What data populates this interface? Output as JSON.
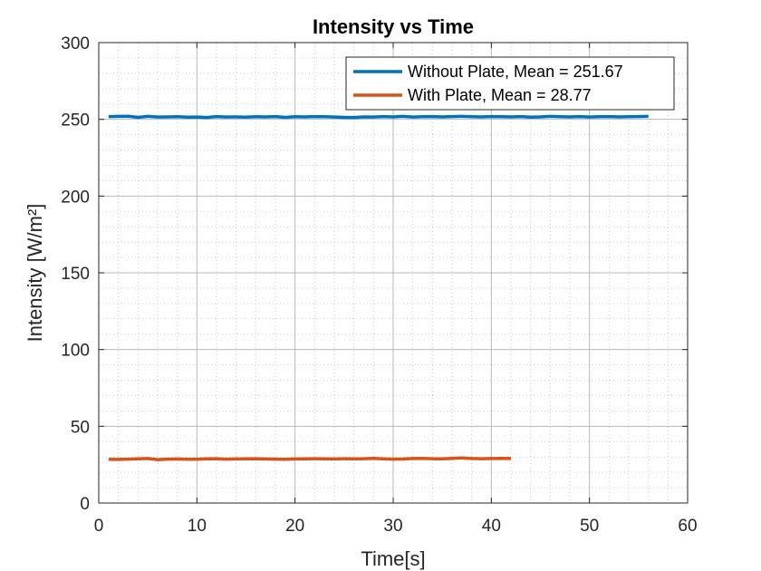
{
  "chart_data": {
    "type": "line",
    "title": "Intensity vs Time",
    "xlabel": "Time[s]",
    "ylabel": "Intensity [W/m²]",
    "xlim": [
      0,
      60
    ],
    "ylim": [
      0,
      300
    ],
    "xticks": [
      0,
      10,
      20,
      30,
      40,
      50,
      60
    ],
    "yticks": [
      0,
      50,
      100,
      150,
      200,
      250,
      300
    ],
    "grid": true,
    "minor_grid": true,
    "legend_position": "top-right",
    "series": [
      {
        "name": "Without Plate, Mean = 251.67",
        "color": "#0072BD",
        "x": [
          1,
          2,
          3,
          4,
          5,
          6,
          7,
          8,
          9,
          10,
          11,
          12,
          13,
          14,
          15,
          16,
          17,
          18,
          19,
          20,
          21,
          22,
          23,
          24,
          25,
          26,
          27,
          28,
          29,
          30,
          31,
          32,
          33,
          34,
          35,
          36,
          37,
          38,
          39,
          40,
          41,
          42,
          43,
          44,
          45,
          46,
          47,
          48,
          49,
          50,
          51,
          52,
          53,
          54,
          55,
          56
        ],
        "values": [
          251.8,
          251.9,
          252.0,
          251.3,
          251.9,
          251.5,
          251.6,
          251.7,
          251.4,
          251.5,
          251.2,
          251.8,
          251.5,
          251.6,
          251.4,
          251.7,
          251.6,
          251.8,
          251.3,
          251.7,
          251.6,
          251.8,
          251.7,
          251.5,
          251.3,
          251.2,
          251.6,
          251.5,
          251.8,
          251.6,
          251.9,
          251.5,
          251.7,
          251.8,
          251.6,
          251.8,
          251.9,
          251.7,
          251.6,
          251.8,
          251.7,
          251.6,
          251.8,
          251.4,
          251.6,
          251.9,
          251.7,
          251.6,
          251.8,
          251.5,
          251.7,
          251.8,
          251.6,
          251.7,
          251.8,
          251.9
        ]
      },
      {
        "name": "With Plate, Mean = 28.77",
        "color": "#D95319",
        "x": [
          1,
          2,
          3,
          4,
          5,
          6,
          7,
          8,
          9,
          10,
          11,
          12,
          13,
          14,
          15,
          16,
          17,
          18,
          19,
          20,
          21,
          22,
          23,
          24,
          25,
          26,
          27,
          28,
          29,
          30,
          31,
          32,
          33,
          34,
          35,
          36,
          37,
          38,
          39,
          40,
          41,
          42
        ],
        "values": [
          28.5,
          28.4,
          28.6,
          28.8,
          29.0,
          28.3,
          28.6,
          28.7,
          28.5,
          28.6,
          28.8,
          28.9,
          28.6,
          28.7,
          28.8,
          28.9,
          28.7,
          28.6,
          28.5,
          28.7,
          28.8,
          28.9,
          28.8,
          28.7,
          28.9,
          28.8,
          28.9,
          29.1,
          28.8,
          28.6,
          28.7,
          29.0,
          29.1,
          28.9,
          28.8,
          29.1,
          29.4,
          29.0,
          28.9,
          29.0,
          29.1,
          29.0
        ]
      }
    ]
  }
}
